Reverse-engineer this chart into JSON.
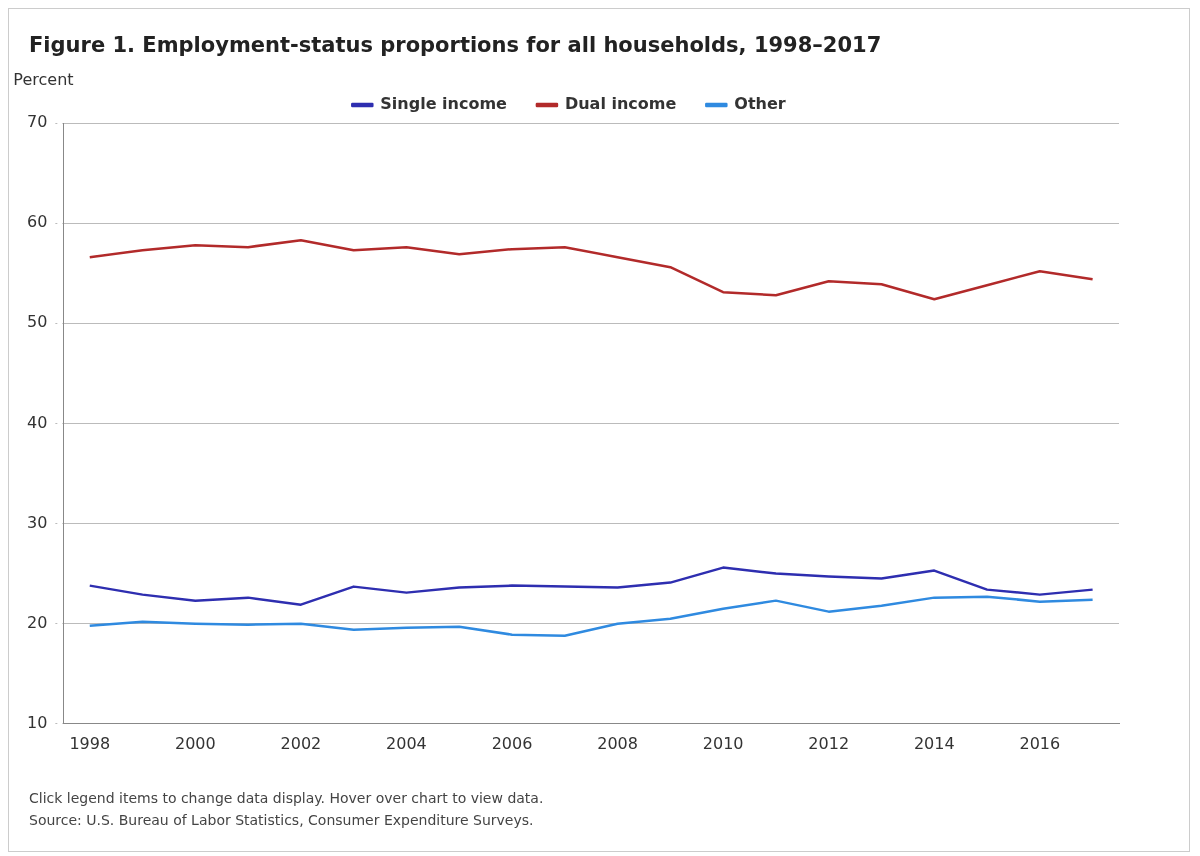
{
  "chart_data": {
    "type": "line",
    "title": "Figure 1. Employment-status proportions for all households, 1998–2017",
    "ylabel": "Percent",
    "x": [
      1998,
      1999,
      2000,
      2001,
      2002,
      2003,
      2004,
      2005,
      2006,
      2007,
      2008,
      2009,
      2010,
      2011,
      2012,
      2013,
      2014,
      2015,
      2016,
      2017
    ],
    "series": [
      {
        "name": "Single income",
        "color": "#2e2eb0",
        "values": [
          23.8,
          22.9,
          22.3,
          22.6,
          21.9,
          23.7,
          23.1,
          23.6,
          23.8,
          23.7,
          23.6,
          24.1,
          25.6,
          25.0,
          24.7,
          24.5,
          25.3,
          23.4,
          22.9,
          23.4
        ]
      },
      {
        "name": "Dual income",
        "color": "#b22a2a",
        "values": [
          56.6,
          57.3,
          57.8,
          57.6,
          58.3,
          57.3,
          57.6,
          56.9,
          57.4,
          57.6,
          56.6,
          55.6,
          53.1,
          52.8,
          54.2,
          53.9,
          52.4,
          53.8,
          55.2,
          54.4
        ]
      },
      {
        "name": "Other",
        "color": "#2f8ae0",
        "values": [
          19.8,
          20.2,
          20.0,
          19.9,
          20.0,
          19.4,
          19.6,
          19.7,
          18.9,
          18.8,
          20.0,
          20.5,
          21.5,
          22.3,
          21.2,
          21.8,
          22.6,
          22.7,
          22.2,
          22.4
        ]
      }
    ],
    "xlim": [
      1997.5,
      2017.5
    ],
    "xticks": [
      1998,
      2000,
      2002,
      2004,
      2006,
      2008,
      2010,
      2012,
      2014,
      2016
    ],
    "ylim": [
      10,
      70
    ],
    "yticks": [
      10,
      20,
      30,
      40,
      50,
      60,
      70
    ],
    "grid": "y",
    "legend": "top",
    "marker": "none",
    "line_style": "solid",
    "annotations": [
      "Click legend items to change data display. Hover over chart to view data.",
      "Source: U.S. Bureau of Labor Statistics, Consumer Expenditure Surveys."
    ]
  }
}
